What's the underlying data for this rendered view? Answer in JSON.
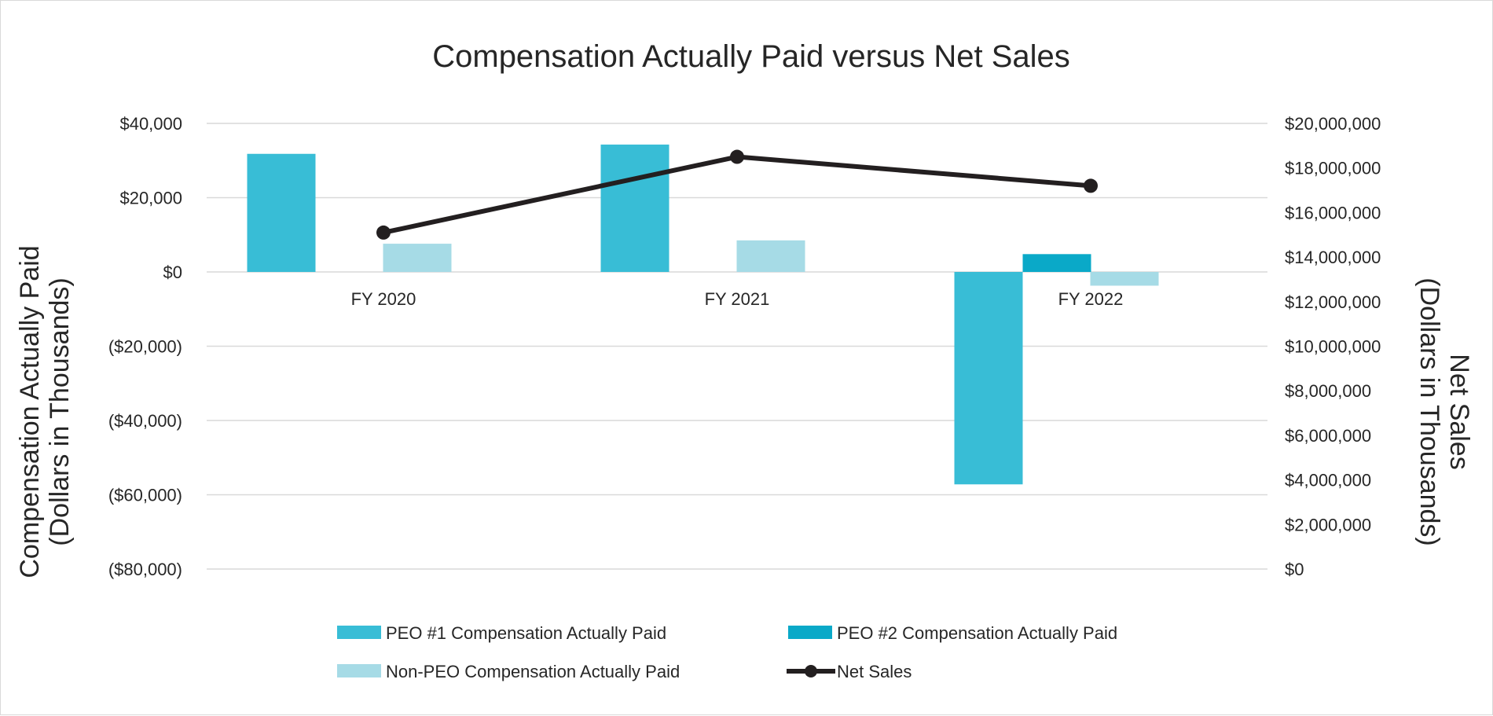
{
  "chart_data": {
    "type": "bar",
    "title": "Compensation Actually Paid versus Net Sales",
    "categories": [
      "FY 2020",
      "FY 2021",
      "FY 2022"
    ],
    "y_left": {
      "label_line1": "Compensation Actually Paid",
      "label_line2": "(Dollars in Thousands)",
      "range": [
        -80000,
        40000
      ],
      "ticks": [
        {
          "value": 40000,
          "label": "$40,000"
        },
        {
          "value": 20000,
          "label": "$20,000"
        },
        {
          "value": 0,
          "label": "$0"
        },
        {
          "value": -20000,
          "label": "($20,000)"
        },
        {
          "value": -40000,
          "label": "($40,000)"
        },
        {
          "value": -60000,
          "label": "($60,000)"
        },
        {
          "value": -80000,
          "label": "($80,000)"
        }
      ],
      "negative_color": "#e8262b",
      "positive_color": "#262626"
    },
    "y_right": {
      "label_line1": "Net Sales",
      "label_line2": "(Dollars in Thousands)",
      "range": [
        0,
        20000000
      ],
      "ticks": [
        {
          "value": 20000000,
          "label": "$20,000,000"
        },
        {
          "value": 18000000,
          "label": "$18,000,000"
        },
        {
          "value": 16000000,
          "label": "$16,000,000"
        },
        {
          "value": 14000000,
          "label": "$14,000,000"
        },
        {
          "value": 12000000,
          "label": "$12,000,000"
        },
        {
          "value": 10000000,
          "label": "$10,000,000"
        },
        {
          "value": 8000000,
          "label": "$8,000,000"
        },
        {
          "value": 6000000,
          "label": "$6,000,000"
        },
        {
          "value": 4000000,
          "label": "$4,000,000"
        },
        {
          "value": 2000000,
          "label": "$2,000,000"
        },
        {
          "value": 0,
          "label": "$0"
        }
      ]
    },
    "series": [
      {
        "name": "PEO #1 Compensation Actually Paid",
        "kind": "bar",
        "axis": "left",
        "color": "#38bdd6",
        "values": [
          31800,
          34300,
          -57200
        ]
      },
      {
        "name": "PEO #2 Compensation Actually Paid",
        "kind": "bar",
        "axis": "left",
        "color": "#0aa9c8",
        "values": [
          null,
          null,
          4800
        ]
      },
      {
        "name": "Non-PEO Compensation Actually Paid",
        "kind": "bar",
        "axis": "left",
        "color": "#a6dbe6",
        "values": [
          7600,
          8500,
          -3700
        ]
      },
      {
        "name": "Net Sales",
        "kind": "line",
        "axis": "right",
        "color": "#231f20",
        "values": [
          15100000,
          18500000,
          17200000
        ]
      }
    ],
    "legend_position": "bottom"
  }
}
